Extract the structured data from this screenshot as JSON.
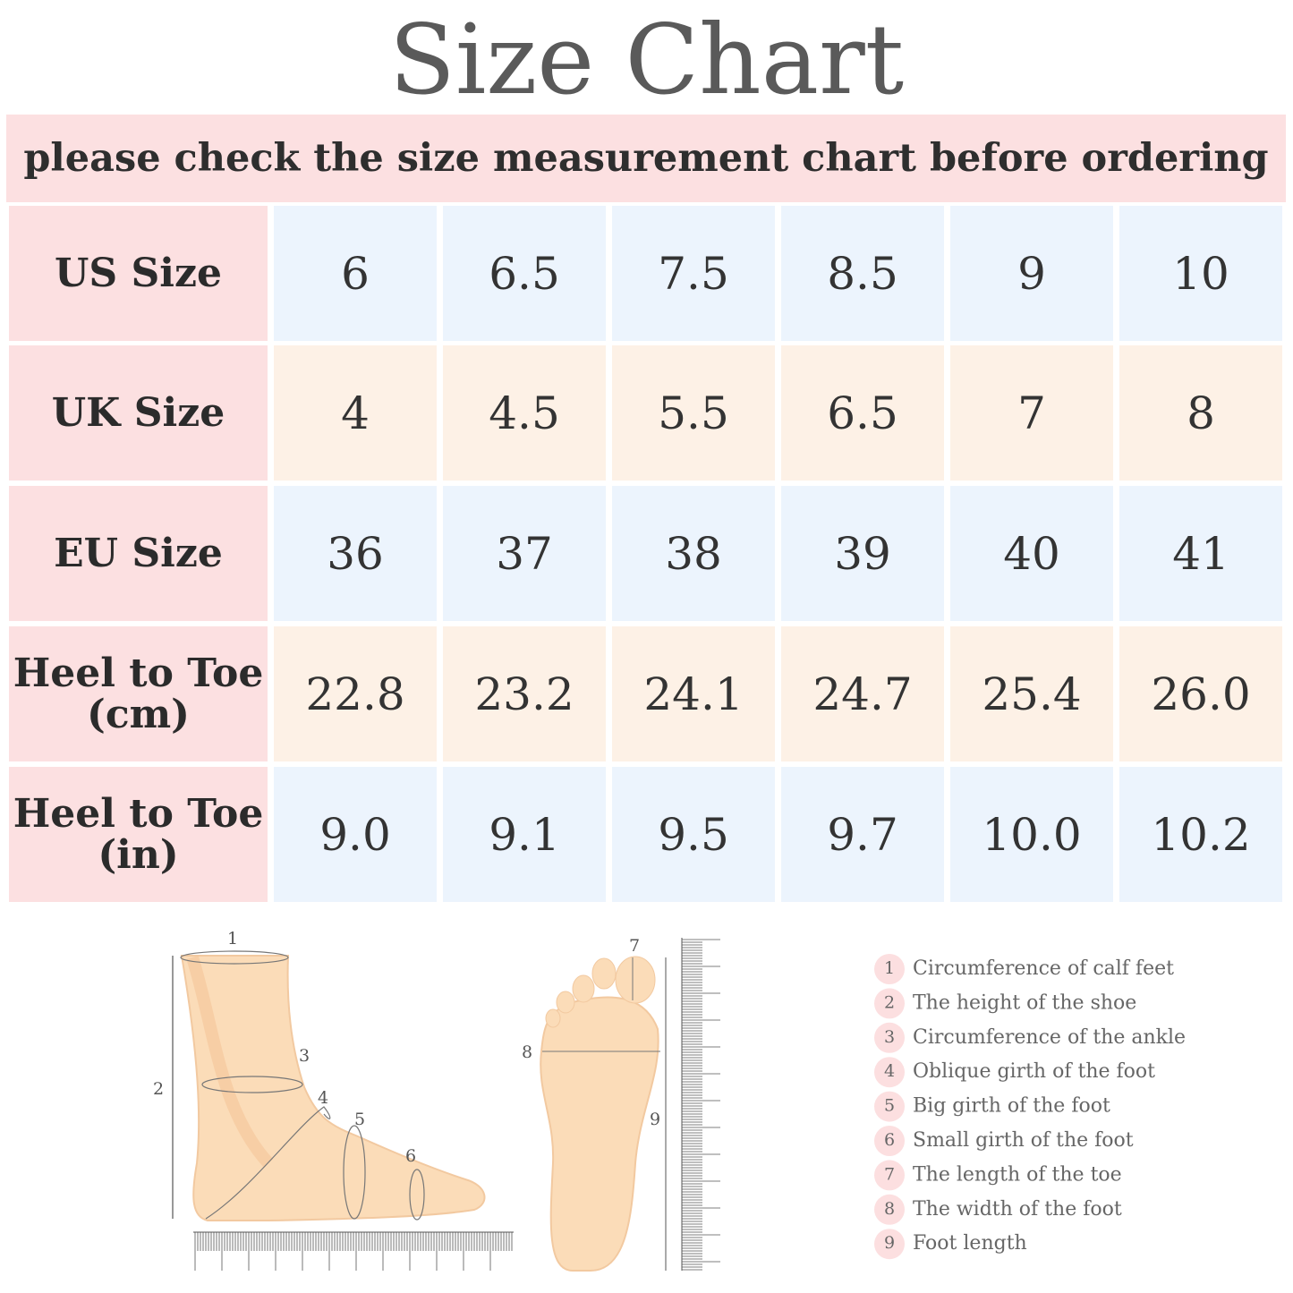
{
  "header": {
    "title": "Size Chart",
    "subtitle": "please check the size measurement chart before ordering"
  },
  "table": {
    "rows": [
      {
        "label": "US Size",
        "values": [
          "6",
          "6.5",
          "7.5",
          "8.5",
          "9",
          "10"
        ]
      },
      {
        "label": "UK Size",
        "values": [
          "4",
          "4.5",
          "5.5",
          "6.5",
          "7",
          "8"
        ]
      },
      {
        "label": "EU Size",
        "values": [
          "36",
          "37",
          "38",
          "39",
          "40",
          "41"
        ]
      },
      {
        "label": "Heel to Toe (cm)",
        "values": [
          "22.8",
          "23.2",
          "24.1",
          "24.7",
          "25.4",
          "26.0"
        ]
      },
      {
        "label": "Heel to Toe (in)",
        "values": [
          "9.0",
          "9.1",
          "9.5",
          "9.7",
          "10.0",
          "10.2"
        ]
      }
    ]
  },
  "diagram": {
    "labels": [
      "1",
      "2",
      "3",
      "4",
      "5",
      "6",
      "7",
      "8",
      "9"
    ]
  },
  "legend": {
    "items": [
      {
        "number": "1",
        "text": "Circumference of calf feet"
      },
      {
        "number": "2",
        "text": "The height of the shoe"
      },
      {
        "number": "3",
        "text": "Circumference of the ankle"
      },
      {
        "number": "4",
        "text": "Oblique girth of the foot"
      },
      {
        "number": "5",
        "text": "Big girth of the foot"
      },
      {
        "number": "6",
        "text": "Small girth of the foot"
      },
      {
        "number": "7",
        "text": "The length of the toe"
      },
      {
        "number": "8",
        "text": "The width of the foot"
      },
      {
        "number": "9",
        "text": "Foot length"
      }
    ]
  }
}
